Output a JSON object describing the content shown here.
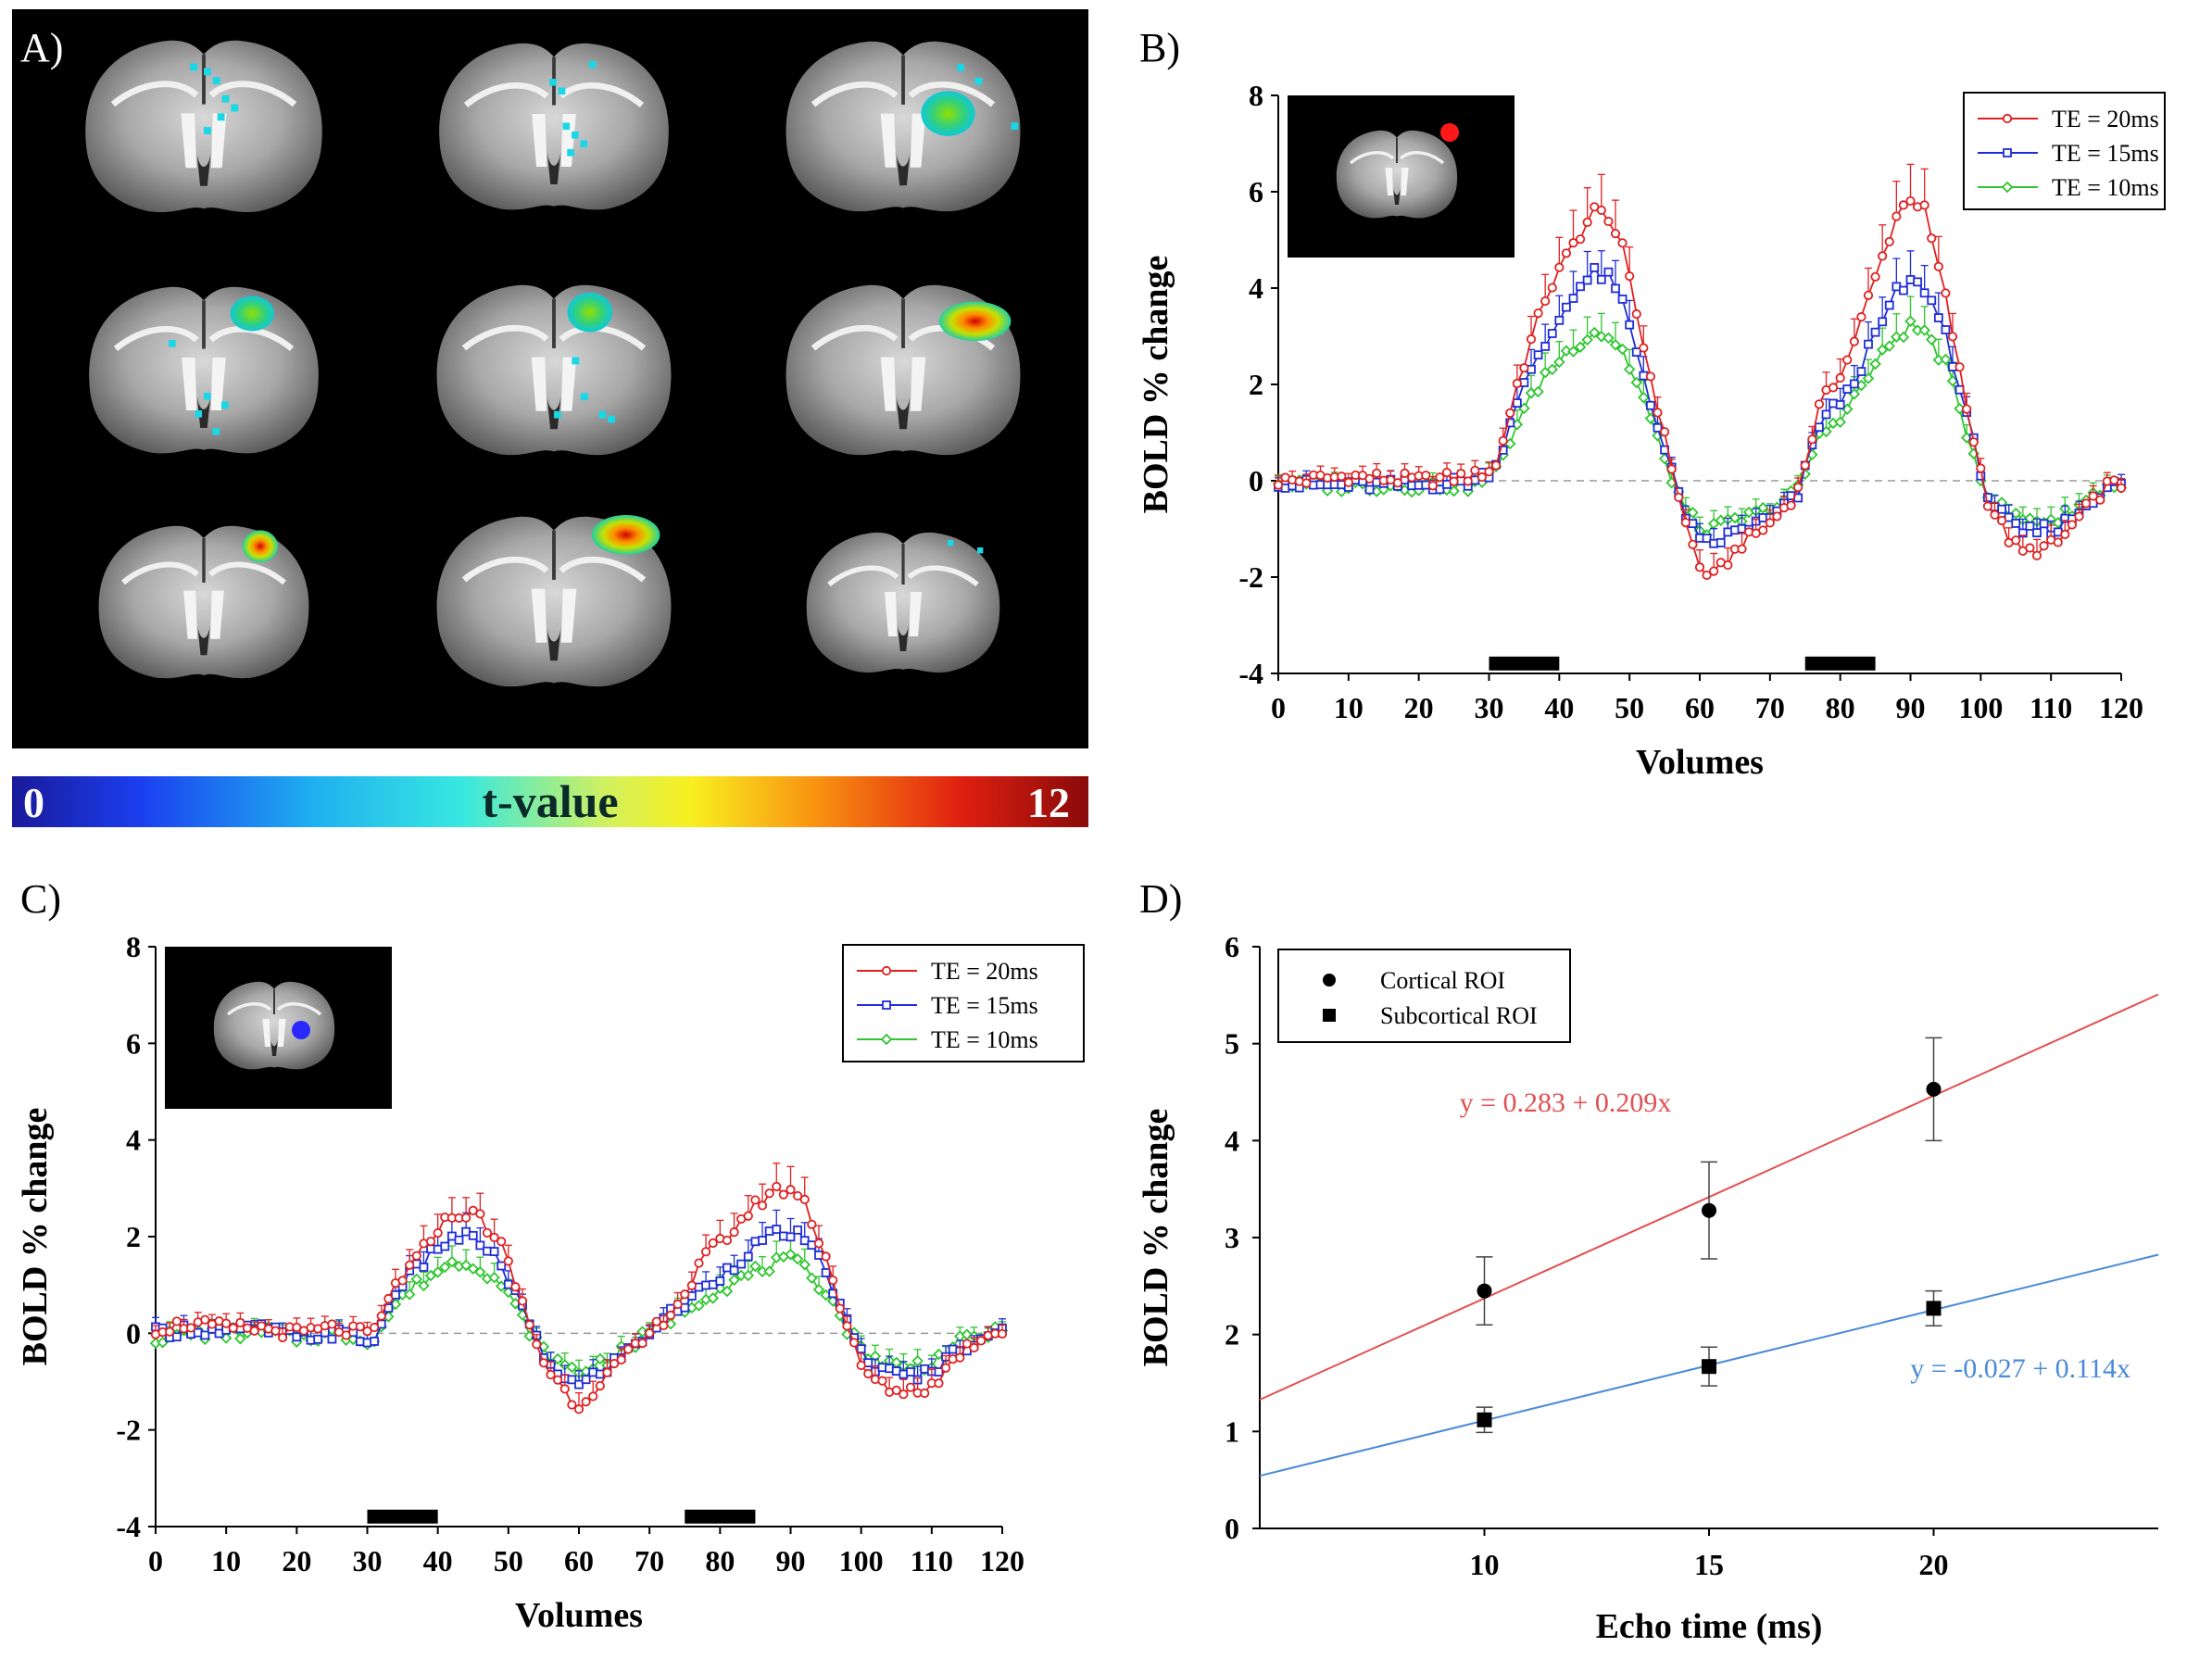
{
  "panel_labels": {
    "a": "A)",
    "b": "B)",
    "c": "C)",
    "d": "D)"
  },
  "colorbar": {
    "min": "0",
    "title": "t-value",
    "max": "12"
  },
  "colors": {
    "te20": "#e02020",
    "te15": "#1f2dd6",
    "te10": "#2fc52f",
    "cortical_fit": "#e25050",
    "subcortical_fit": "#4a8ad8"
  },
  "icons": {
    "slice": "brain-slice-image",
    "roi": "roi-marker"
  },
  "chart_data": [
    {
      "id": "B",
      "type": "line",
      "ylabel": "BOLD % change",
      "xlabel": "Volumes",
      "xlim": [
        0,
        120
      ],
      "ylim": [
        -4,
        8
      ],
      "xticks": [
        "0",
        "10",
        "20",
        "30",
        "40",
        "50",
        "60",
        "70",
        "80",
        "90",
        "100",
        "110",
        "120"
      ],
      "yticks": [
        "-4",
        "-2",
        "0",
        "2",
        "4",
        "6",
        "8"
      ],
      "stimulus_blocks": [
        [
          30,
          40
        ],
        [
          75,
          85
        ]
      ],
      "series": [
        {
          "name": "TE = 20ms",
          "marker": "circle",
          "keys": [
            [
              0,
              0
            ],
            [
              3,
              0
            ],
            [
              10,
              0.1
            ],
            [
              20,
              0
            ],
            [
              28,
              0.1
            ],
            [
              31,
              0.3
            ],
            [
              34,
              2.0
            ],
            [
              38,
              3.8
            ],
            [
              42,
              4.9
            ],
            [
              45,
              5.6
            ],
            [
              47,
              5.5
            ],
            [
              49,
              4.8
            ],
            [
              52,
              2.8
            ],
            [
              55,
              0.9
            ],
            [
              58,
              -0.9
            ],
            [
              60,
              -1.8
            ],
            [
              62,
              -2.0
            ],
            [
              66,
              -1.3
            ],
            [
              70,
              -0.9
            ],
            [
              74,
              -0.2
            ],
            [
              77,
              1.5
            ],
            [
              81,
              2.5
            ],
            [
              85,
              4.2
            ],
            [
              88,
              5.5
            ],
            [
              90,
              5.9
            ],
            [
              92,
              5.6
            ],
            [
              95,
              3.8
            ],
            [
              98,
              1.5
            ],
            [
              101,
              -0.4
            ],
            [
              104,
              -1.2
            ],
            [
              106,
              -1.5
            ],
            [
              109,
              -1.4
            ],
            [
              111,
              -1.3
            ],
            [
              115,
              -0.6
            ],
            [
              118,
              -0.1
            ],
            [
              120,
              -0.1
            ]
          ]
        },
        {
          "name": "TE = 15ms",
          "marker": "square",
          "keys": [
            [
              0,
              0
            ],
            [
              3,
              -0.1
            ],
            [
              10,
              -0.1
            ],
            [
              20,
              -0.1
            ],
            [
              28,
              0
            ],
            [
              31,
              0.3
            ],
            [
              34,
              1.7
            ],
            [
              38,
              2.8
            ],
            [
              42,
              3.9
            ],
            [
              45,
              4.3
            ],
            [
              47,
              4.2
            ],
            [
              49,
              3.7
            ],
            [
              52,
              2.2
            ],
            [
              55,
              0.6
            ],
            [
              58,
              -0.7
            ],
            [
              60,
              -1.3
            ],
            [
              62,
              -1.3
            ],
            [
              66,
              -1.0
            ],
            [
              70,
              -0.8
            ],
            [
              74,
              -0.3
            ],
            [
              77,
              1.2
            ],
            [
              81,
              1.8
            ],
            [
              85,
              3.0
            ],
            [
              88,
              3.9
            ],
            [
              90,
              4.1
            ],
            [
              92,
              4.0
            ],
            [
              95,
              3.1
            ],
            [
              98,
              1.3
            ],
            [
              101,
              -0.3
            ],
            [
              104,
              -0.9
            ],
            [
              106,
              -1.1
            ],
            [
              109,
              -1.0
            ],
            [
              111,
              -1.0
            ],
            [
              115,
              -0.5
            ],
            [
              118,
              -0.1
            ],
            [
              120,
              -0.1
            ]
          ]
        },
        {
          "name": "TE = 10ms",
          "marker": "diamond",
          "keys": [
            [
              0,
              0
            ],
            [
              3,
              -0.1
            ],
            [
              10,
              -0.1
            ],
            [
              20,
              -0.1
            ],
            [
              28,
              -0.1
            ],
            [
              31,
              0.2
            ],
            [
              34,
              1.2
            ],
            [
              38,
              2.2
            ],
            [
              42,
              2.8
            ],
            [
              45,
              3.1
            ],
            [
              47,
              3.0
            ],
            [
              49,
              2.7
            ],
            [
              52,
              1.7
            ],
            [
              55,
              0.4
            ],
            [
              58,
              -0.6
            ],
            [
              60,
              -1.0
            ],
            [
              62,
              -1.0
            ],
            [
              66,
              -0.8
            ],
            [
              70,
              -0.6
            ],
            [
              74,
              -0.2
            ],
            [
              77,
              0.9
            ],
            [
              81,
              1.5
            ],
            [
              85,
              2.4
            ],
            [
              88,
              3.0
            ],
            [
              90,
              3.2
            ],
            [
              92,
              3.1
            ],
            [
              95,
              2.4
            ],
            [
              98,
              1.0
            ],
            [
              101,
              -0.3
            ],
            [
              104,
              -0.7
            ],
            [
              106,
              -0.8
            ],
            [
              109,
              -0.8
            ],
            [
              111,
              -0.8
            ],
            [
              115,
              -0.4
            ],
            [
              118,
              -0.1
            ],
            [
              120,
              -0.1
            ]
          ]
        }
      ]
    },
    {
      "id": "C",
      "type": "line",
      "ylabel": "BOLD % change",
      "xlabel": "Volumes",
      "xlim": [
        0,
        120
      ],
      "ylim": [
        -4,
        8
      ],
      "xticks": [
        "0",
        "10",
        "20",
        "30",
        "40",
        "50",
        "60",
        "70",
        "80",
        "90",
        "100",
        "110",
        "120"
      ],
      "yticks": [
        "-4",
        "-2",
        "0",
        "2",
        "4",
        "6",
        "8"
      ],
      "stimulus_blocks": [
        [
          30,
          40
        ],
        [
          75,
          85
        ]
      ],
      "series": [
        {
          "name": "TE = 20ms",
          "marker": "circle",
          "keys": [
            [
              0,
              0.1
            ],
            [
              5,
              0.2
            ],
            [
              10,
              0.1
            ],
            [
              15,
              0.1
            ],
            [
              20,
              0
            ],
            [
              25,
              0.1
            ],
            [
              29,
              0
            ],
            [
              31,
              0
            ],
            [
              34,
              1.0
            ],
            [
              37,
              1.5
            ],
            [
              40,
              2.2
            ],
            [
              43,
              2.5
            ],
            [
              46,
              2.4
            ],
            [
              49,
              1.8
            ],
            [
              52,
              0.6
            ],
            [
              55,
              -0.6
            ],
            [
              58,
              -1.2
            ],
            [
              60,
              -1.5
            ],
            [
              63,
              -1.0
            ],
            [
              66,
              -0.6
            ],
            [
              69,
              -0.2
            ],
            [
              72,
              0.3
            ],
            [
              75,
              0.8
            ],
            [
              78,
              1.6
            ],
            [
              81,
              2.0
            ],
            [
              84,
              2.5
            ],
            [
              87,
              2.9
            ],
            [
              90,
              3.0
            ],
            [
              92,
              2.7
            ],
            [
              95,
              1.6
            ],
            [
              98,
              0.1
            ],
            [
              100,
              -0.7
            ],
            [
              103,
              -1.1
            ],
            [
              106,
              -1.2
            ],
            [
              110,
              -1.1
            ],
            [
              114,
              -0.4
            ],
            [
              118,
              0
            ],
            [
              120,
              0.1
            ]
          ]
        },
        {
          "name": "TE = 15ms",
          "marker": "square",
          "keys": [
            [
              0,
              0
            ],
            [
              5,
              0.1
            ],
            [
              10,
              0
            ],
            [
              15,
              0.1
            ],
            [
              20,
              -0.1
            ],
            [
              25,
              0
            ],
            [
              29,
              -0.1
            ],
            [
              31,
              -0.2
            ],
            [
              34,
              0.9
            ],
            [
              37,
              1.3
            ],
            [
              40,
              1.8
            ],
            [
              43,
              2.0
            ],
            [
              46,
              1.9
            ],
            [
              49,
              1.4
            ],
            [
              52,
              0.5
            ],
            [
              55,
              -0.5
            ],
            [
              58,
              -0.9
            ],
            [
              60,
              -1.1
            ],
            [
              63,
              -0.8
            ],
            [
              66,
              -0.5
            ],
            [
              69,
              -0.1
            ],
            [
              72,
              0.3
            ],
            [
              75,
              0.6
            ],
            [
              78,
              1.0
            ],
            [
              81,
              1.3
            ],
            [
              84,
              1.7
            ],
            [
              87,
              2.0
            ],
            [
              90,
              2.1
            ],
            [
              92,
              1.9
            ],
            [
              95,
              1.3
            ],
            [
              98,
              0.2
            ],
            [
              100,
              -0.4
            ],
            [
              103,
              -0.8
            ],
            [
              106,
              -0.9
            ],
            [
              110,
              -0.8
            ],
            [
              114,
              -0.3
            ],
            [
              118,
              0
            ],
            [
              120,
              0
            ]
          ]
        },
        {
          "name": "TE = 10ms",
          "marker": "diamond",
          "keys": [
            [
              0,
              -0.1
            ],
            [
              5,
              0
            ],
            [
              10,
              0
            ],
            [
              15,
              0
            ],
            [
              20,
              -0.1
            ],
            [
              25,
              0
            ],
            [
              29,
              -0.1
            ],
            [
              31,
              -0.1
            ],
            [
              34,
              0.6
            ],
            [
              37,
              1.0
            ],
            [
              40,
              1.3
            ],
            [
              43,
              1.5
            ],
            [
              46,
              1.4
            ],
            [
              49,
              1.0
            ],
            [
              52,
              0.3
            ],
            [
              55,
              -0.4
            ],
            [
              58,
              -0.7
            ],
            [
              60,
              -0.8
            ],
            [
              63,
              -0.6
            ],
            [
              66,
              -0.4
            ],
            [
              69,
              -0.1
            ],
            [
              72,
              0.2
            ],
            [
              75,
              0.5
            ],
            [
              78,
              0.8
            ],
            [
              81,
              1.0
            ],
            [
              84,
              1.2
            ],
            [
              87,
              1.4
            ],
            [
              90,
              1.5
            ],
            [
              92,
              1.3
            ],
            [
              95,
              0.9
            ],
            [
              98,
              0.1
            ],
            [
              100,
              -0.3
            ],
            [
              103,
              -0.6
            ],
            [
              106,
              -0.7
            ],
            [
              110,
              -0.6
            ],
            [
              114,
              -0.2
            ],
            [
              118,
              0
            ],
            [
              120,
              0
            ]
          ]
        }
      ]
    },
    {
      "id": "D",
      "type": "scatter",
      "ylabel": "BOLD % change",
      "xlabel": "Echo time (ms)",
      "xlim": [
        5,
        25
      ],
      "ylim": [
        0,
        6
      ],
      "xticks": [
        "10",
        "15",
        "20"
      ],
      "yticks": [
        "0",
        "1",
        "2",
        "3",
        "4",
        "5",
        "6"
      ],
      "series": [
        {
          "name": "Cortical ROI",
          "marker": "circle",
          "x": [
            10,
            15,
            20
          ],
          "y": [
            2.45,
            3.28,
            4.53
          ],
          "err": [
            0.35,
            0.5,
            0.53
          ],
          "fit": {
            "intercept": 0.283,
            "slope": 0.209,
            "label": "y = 0.283 + 0.209x"
          }
        },
        {
          "name": "Subcortical ROI",
          "marker": "square",
          "x": [
            10,
            15,
            20
          ],
          "y": [
            1.12,
            1.67,
            2.27
          ],
          "err": [
            0.13,
            0.2,
            0.18
          ],
          "fit": {
            "intercept": -0.027,
            "slope": 0.114,
            "label": "y = -0.027 + 0.114x"
          }
        }
      ]
    }
  ]
}
